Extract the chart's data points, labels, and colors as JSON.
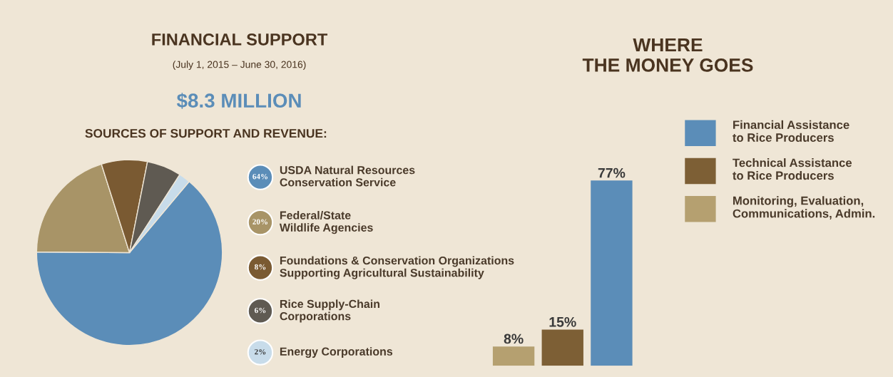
{
  "chart_data": [
    {
      "type": "pie",
      "title": "FINANCIAL SUPPORT",
      "subtitle": "(July 1, 2015 – June 30, 2016)",
      "annotations": [
        "$8.3 MILLION",
        "SOURCES OF SUPPORT AND REVENUE:"
      ],
      "categories": [
        "USDA Natural Resources\nConservation Service",
        "Federal/State\nWildlife Agencies",
        "Foundations & Conservation Organizations\nSupporting Agricultural Sustainability",
        "Rice Supply-Chain\nCorporations",
        "Energy Corporations"
      ],
      "values": [
        64,
        20,
        8,
        6,
        2
      ],
      "value_labels": [
        "64%",
        "20%",
        "8%",
        "6%",
        "2%"
      ],
      "colors": [
        "#5b8db8",
        "#a89467",
        "#7a5a32",
        "#5f5a52",
        "#c8dcea"
      ],
      "legend": "right"
    },
    {
      "type": "bar",
      "title": "WHERE\nTHE MONEY GOES",
      "stacked": true,
      "categories": [
        null,
        null,
        null
      ],
      "series": [
        {
          "name": "Financial Assistance\nto Rice Producers",
          "color": "#5b8db8",
          "values": [
            null,
            null,
            77
          ],
          "value_labels": [
            null,
            null,
            "77%"
          ]
        },
        {
          "name": "Technical Assistance\nto Rice Producers",
          "color": "#7d5f35",
          "values": [
            null,
            15,
            null
          ],
          "value_labels": [
            null,
            "15%",
            null
          ]
        },
        {
          "name": "Monitoring, Evaluation,\nCommunications, Admin.",
          "color": "#b5a070",
          "values": [
            8,
            null,
            null
          ],
          "value_labels": [
            "8%",
            null,
            null
          ]
        }
      ],
      "legend": "right"
    }
  ]
}
